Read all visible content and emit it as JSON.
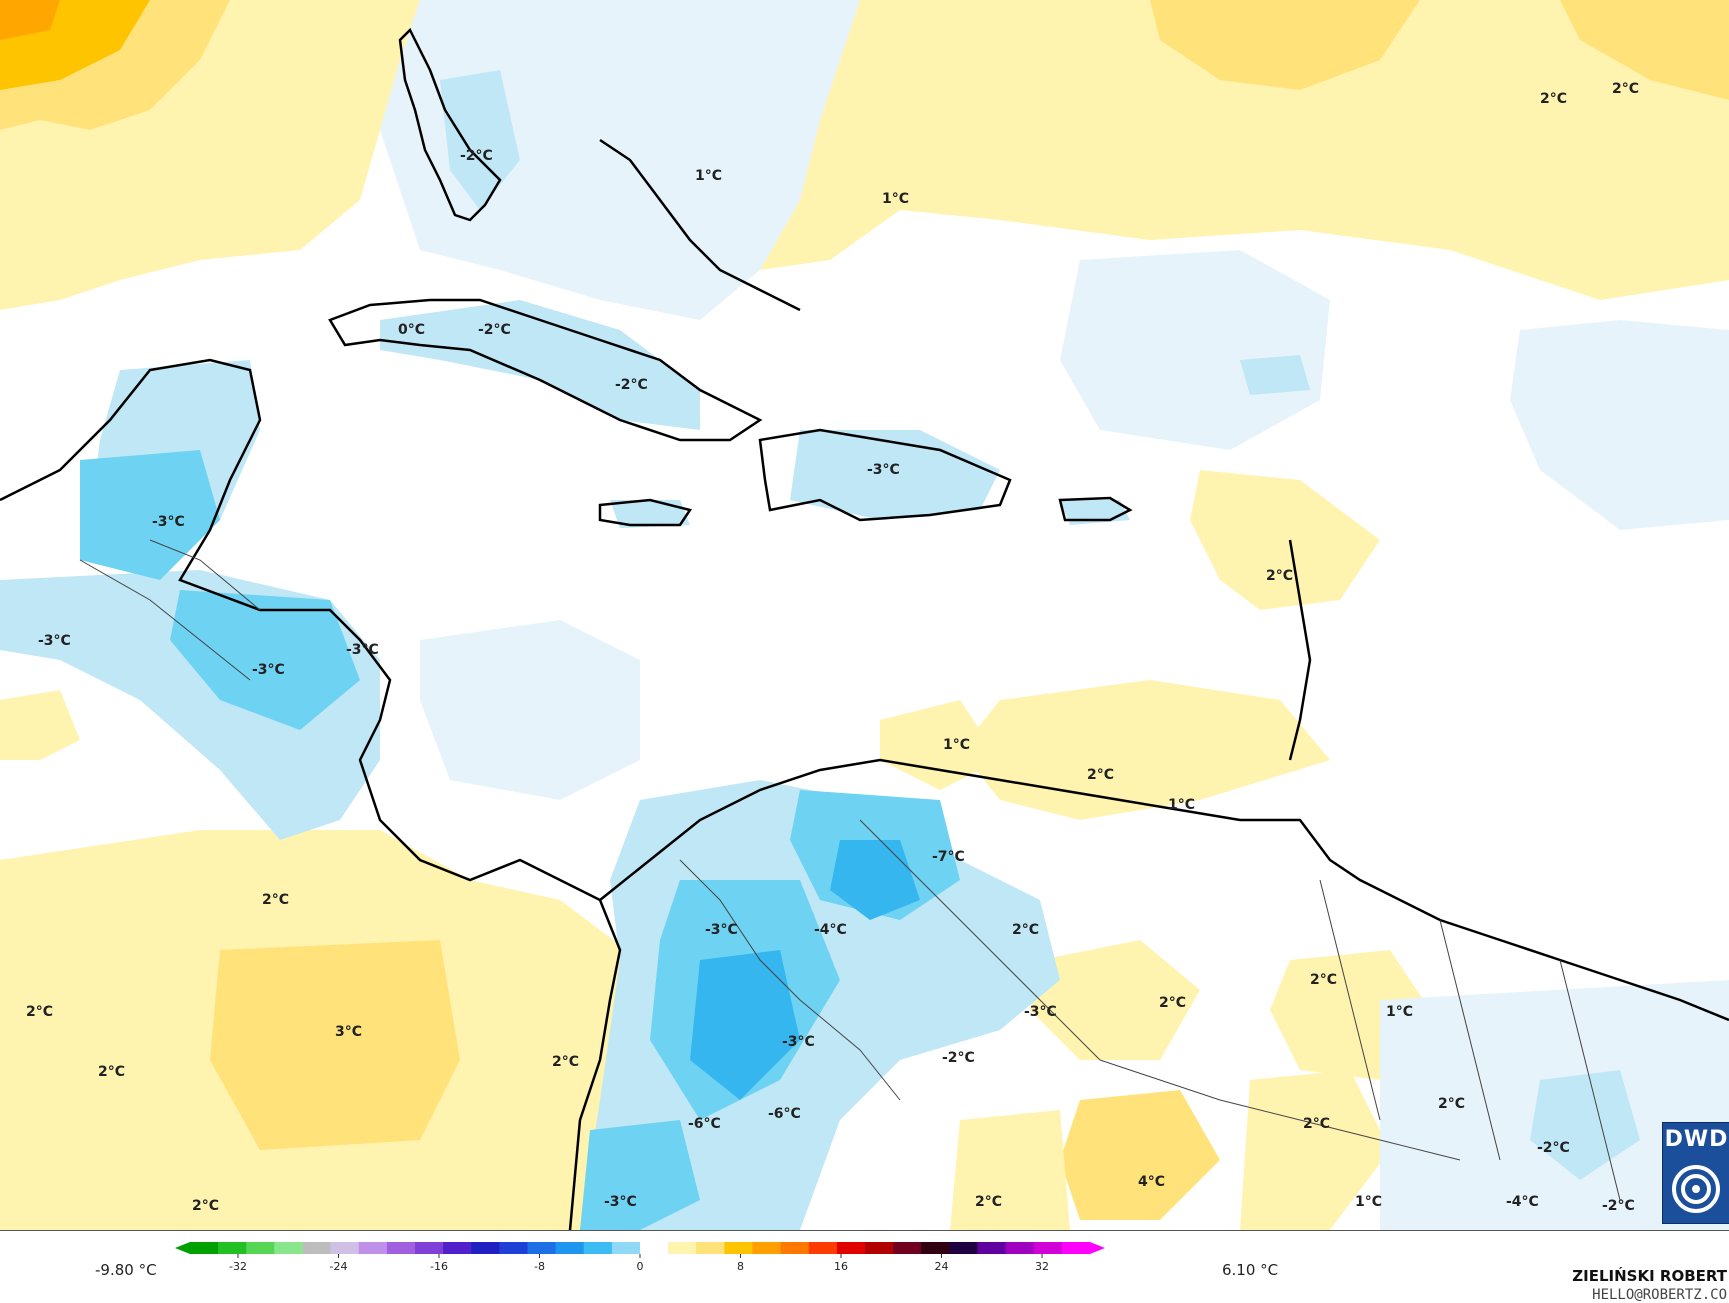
{
  "map": {
    "colors": {
      "ocean_neutral": "#ffffff",
      "cold_light": "#e6f3fb",
      "cold_mid": "#bfe7f6",
      "cold_strong": "#6ed2f2",
      "cold_stronger": "#36b6ef",
      "warm_light": "#fff3b0",
      "warm_mid": "#ffe27a",
      "warm_strong": "#ffc400",
      "warm_stronger": "#ffa600",
      "coastline": "#000000",
      "borders": "#444444"
    },
    "labels": [
      "-2°C",
      "1°C",
      "1°C",
      "2°C",
      "2°C",
      "0°C",
      "-2°C",
      "-2°C",
      "-3°C",
      "-3°C",
      "-3°C",
      "-3°C",
      "-3°C",
      "2°C",
      "1°C",
      "2°C",
      "1°C",
      "-7°C",
      "2°C",
      "-3°C",
      "-4°C",
      "-3°C",
      "-2°C",
      "2°C",
      "2°C",
      "2°C",
      "3°C",
      "2°C",
      "2°C",
      "2°C",
      "1°C",
      "2°C",
      "2°C",
      "-6°C",
      "-6°C",
      "-3°C",
      "-3°C",
      "2°C",
      "4°C",
      "1°C",
      "-2°C",
      "-4°C",
      "-2°C",
      "2°C"
    ]
  },
  "legend": {
    "min_label": "-9.80 °C",
    "max_label": "6.10 °C",
    "ticks": [
      "-32",
      "-24",
      "-16",
      "-8",
      "0",
      "8",
      "16",
      "24",
      "32"
    ],
    "colors": [
      "#00a000",
      "#22c022",
      "#55d655",
      "#8ae68a",
      "#bdbdbd",
      "#d0c0e8",
      "#c090e8",
      "#a060e0",
      "#8040d8",
      "#5020c8",
      "#2020c0",
      "#1e40d8",
      "#1e6ee6",
      "#1e96f0",
      "#3cbcf5",
      "#8fd9f7",
      "#ffffff",
      "#fff3b0",
      "#ffe27a",
      "#ffc400",
      "#ffa000",
      "#ff7800",
      "#ff3c00",
      "#e00000",
      "#b00000",
      "#700020",
      "#300010",
      "#200040",
      "#6000a0",
      "#a000c0",
      "#d000d8",
      "#ff00ff"
    ]
  },
  "credit": {
    "name": "ZIELIŃSKI ROBERT",
    "email": "HELLO@ROBERTZ.CO"
  },
  "logo": {
    "text": "DWD",
    "icon": "swirl-icon"
  }
}
